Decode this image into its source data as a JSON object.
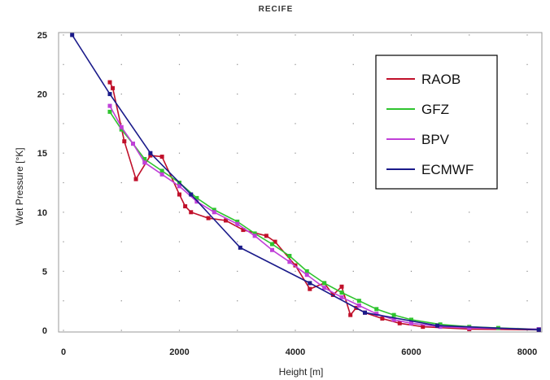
{
  "chart_data": {
    "type": "line",
    "title": "RECIFE",
    "xlabel": "Height  [m]",
    "ylabel": "Wet Pressure [°K]",
    "xlim": [
      0,
      8200
    ],
    "ylim": [
      0,
      26
    ],
    "xticks": [
      0,
      2000,
      4000,
      6000,
      8000
    ],
    "yticks": [
      0,
      5,
      10,
      15,
      20,
      25
    ],
    "legend_position": "top-right",
    "series": [
      {
        "name": "RAOB",
        "color": "#c0102a",
        "x": [
          800,
          850,
          1050,
          1250,
          1500,
          1700,
          2000,
          2100,
          2200,
          2500,
          2800,
          3100,
          3500,
          3650,
          4000,
          4250,
          4500,
          4650,
          4800,
          4950,
          5050,
          5200,
          5500,
          5800,
          6200,
          7000,
          8200
        ],
        "y": [
          21,
          20.5,
          16,
          12.8,
          14.8,
          14.7,
          11.5,
          10.5,
          10,
          9.5,
          9.3,
          8.5,
          8.0,
          7.5,
          5.5,
          3.5,
          4.0,
          3.0,
          3.7,
          1.3,
          1.9,
          1.5,
          1.0,
          0.6,
          0.3,
          0.1,
          0.05
        ]
      },
      {
        "name": "GFZ",
        "color": "#2ec42e",
        "x": [
          800,
          1000,
          1200,
          1400,
          1700,
          2000,
          2300,
          2600,
          3000,
          3300,
          3600,
          3900,
          4200,
          4500,
          4800,
          5100,
          5400,
          5700,
          6000,
          6500,
          7000,
          7500,
          8200
        ],
        "y": [
          18.5,
          17,
          15.8,
          14.5,
          13.5,
          12.5,
          11.2,
          10.2,
          9.2,
          8.2,
          7.3,
          6.3,
          5.0,
          4.0,
          3.2,
          2.5,
          1.8,
          1.3,
          0.9,
          0.5,
          0.3,
          0.2,
          0.1
        ]
      },
      {
        "name": "BPV",
        "color": "#c040d8",
        "x": [
          800,
          1000,
          1200,
          1400,
          1700,
          2000,
          2300,
          2600,
          3000,
          3300,
          3600,
          3900,
          4200,
          4500,
          4800,
          5100,
          5400,
          5700,
          6000,
          6500,
          7000,
          8200
        ],
        "y": [
          19,
          17.2,
          15.8,
          14.2,
          13.2,
          12.2,
          10.9,
          10.0,
          9.0,
          8.0,
          6.8,
          5.8,
          4.7,
          3.6,
          2.8,
          2.1,
          1.4,
          0.9,
          0.6,
          0.3,
          0.2,
          0.1
        ]
      },
      {
        "name": "ECMWF",
        "color": "#1a1a8a",
        "x": [
          150,
          800,
          1500,
          2200,
          3050,
          4250,
          5200,
          6450,
          8200
        ],
        "y": [
          25,
          20,
          15,
          11.5,
          7.0,
          4.0,
          1.5,
          0.4,
          0.05
        ]
      }
    ]
  }
}
